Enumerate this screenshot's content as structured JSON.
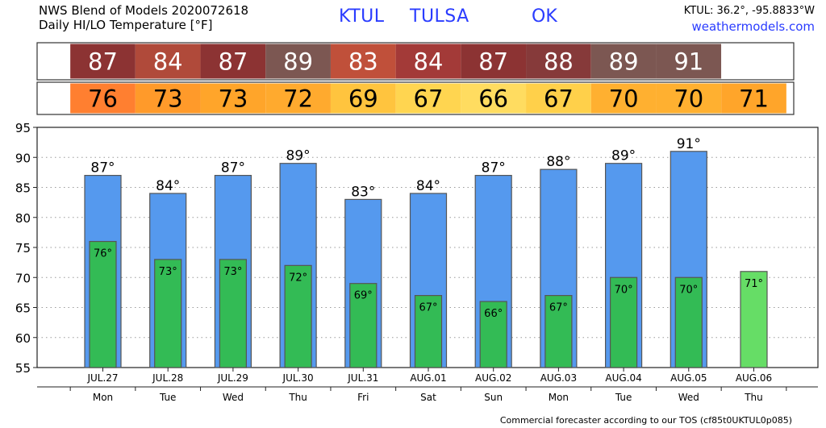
{
  "header": {
    "title_line1": "NWS Blend of Models 2020072618",
    "title_line2": "Daily HI/LO Temperature [°F]",
    "station": "KTUL",
    "city": "TULSA",
    "state": "OK",
    "coords": "KTUL: 36.2°, -95.8833°W",
    "site": "weathermodels.com"
  },
  "footer": {
    "text": "Commercial forecaster according to our TOS (cf85t0UKTUL0p085)"
  },
  "colors": {
    "high_bar": "#5599ee",
    "low_bar": "#33bb55",
    "low_bar_last": "#66dd66",
    "high_strip_dark": "#8c3333",
    "high_strip_mid": "#b04a3a",
    "high_strip_alt": "#7c5752",
    "low_strip_orange": "#ff9326"
  },
  "chart_data": {
    "type": "bar",
    "dates": [
      "JUL.27",
      "JUL.28",
      "JUL.29",
      "JUL.30",
      "JUL.31",
      "AUG.01",
      "AUG.02",
      "AUG.03",
      "AUG.04",
      "AUG.05",
      "AUG.06"
    ],
    "days": [
      "Mon",
      "Tue",
      "Wed",
      "Thu",
      "Fri",
      "Sat",
      "Sun",
      "Mon",
      "Tue",
      "Wed",
      "Thu"
    ],
    "series": [
      {
        "values": [
          87,
          84,
          87,
          89,
          83,
          84,
          87,
          88,
          89,
          91,
          null
        ]
      },
      {
        "values": [
          76,
          73,
          73,
          72,
          69,
          67,
          66,
          67,
          70,
          70,
          71
        ]
      }
    ],
    "high_labels": [
      "87°",
      "84°",
      "87°",
      "89°",
      "83°",
      "84°",
      "87°",
      "88°",
      "89°",
      "91°",
      ""
    ],
    "low_labels": [
      "76°",
      "73°",
      "73°",
      "72°",
      "69°",
      "67°",
      "66°",
      "67°",
      "70°",
      "70°",
      "71°"
    ],
    "high_strip": {
      "labels": [
        "87",
        "84",
        "87",
        "89",
        "83",
        "84",
        "87",
        "88",
        "89",
        "91",
        ""
      ],
      "colors": [
        "#8c3333",
        "#b04a3a",
        "#8c3333",
        "#7c5752",
        "#c0503a",
        "#a33a38",
        "#8c3333",
        "#863a3a",
        "#7c5752",
        "#7c5752",
        "#ffffff"
      ]
    },
    "low_strip": {
      "labels": [
        "76",
        "73",
        "73",
        "72",
        "69",
        "67",
        "66",
        "67",
        "70",
        "70",
        "71"
      ],
      "colors": [
        "#ff7f30",
        "#ff9a2a",
        "#ffa52a",
        "#ffaa2e",
        "#ffc43e",
        "#ffd550",
        "#ffdc60",
        "#ffd04a",
        "#ffb030",
        "#ffb030",
        "#ffa52a"
      ]
    },
    "ylim": [
      55,
      95
    ],
    "yticks": [
      55,
      60,
      65,
      70,
      75,
      80,
      85,
      90,
      95
    ],
    "grid": true
  }
}
